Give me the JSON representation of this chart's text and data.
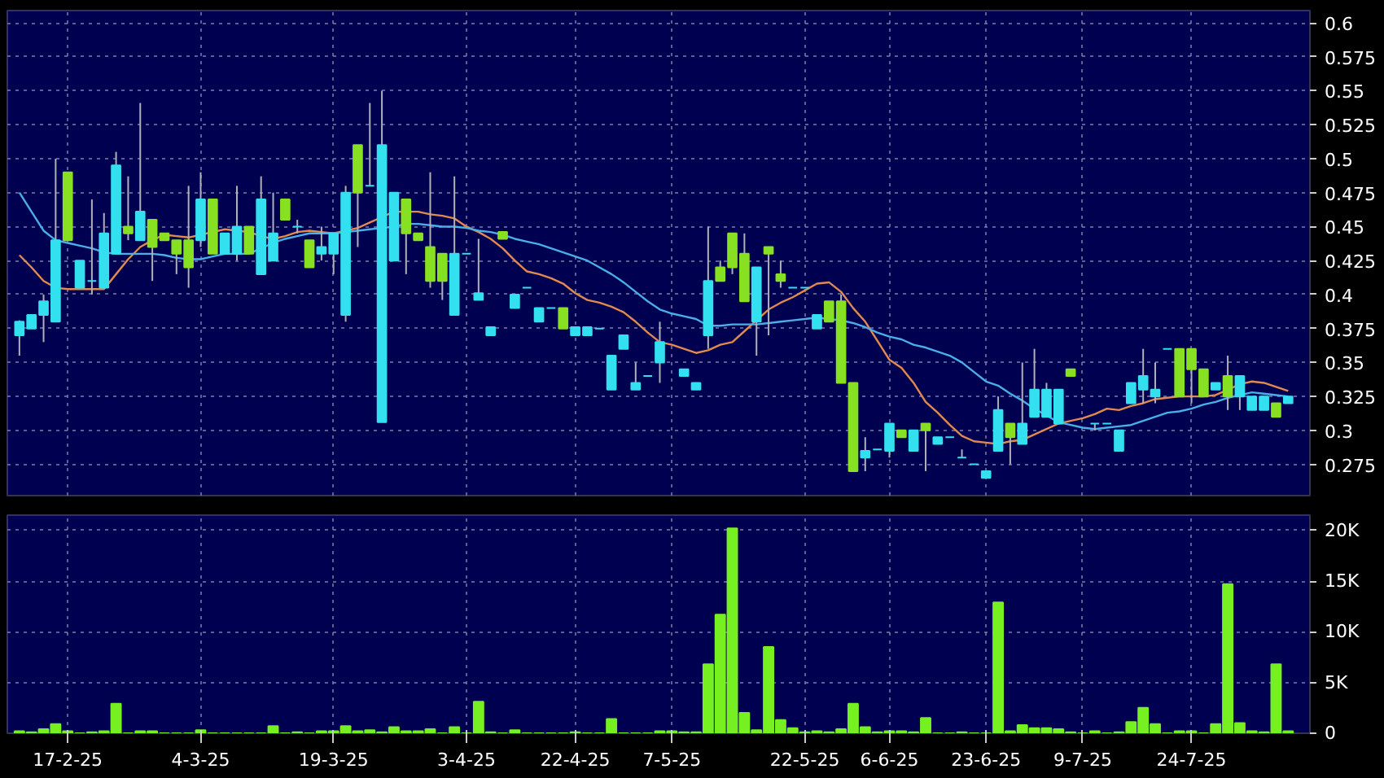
{
  "chart_data": [
    {
      "type": "candlestick",
      "categories": [
        null,
        null,
        null,
        null,
        null,
        null,
        null,
        null,
        null,
        null,
        null,
        null,
        null,
        null,
        null,
        null,
        null,
        null,
        null,
        null,
        null,
        null,
        null,
        null,
        null,
        null,
        null,
        null,
        null,
        null,
        null,
        null,
        null,
        null,
        null,
        null,
        null,
        null,
        null,
        null,
        null,
        null,
        null,
        null,
        null,
        null,
        null,
        null,
        null,
        null,
        null,
        null,
        null,
        null,
        null,
        null,
        null,
        null,
        null,
        null,
        null,
        null,
        null,
        null,
        null,
        null,
        null,
        null,
        null,
        null,
        null,
        null,
        null,
        null,
        null,
        null,
        null,
        null,
        null,
        null,
        null,
        null,
        null,
        null,
        null,
        null,
        null,
        null,
        null,
        null,
        null,
        null,
        null,
        null,
        null,
        null,
        null,
        null,
        null,
        null,
        null,
        null,
        null,
        null,
        null,
        null
      ],
      "ohlc": [
        [
          0.37,
          0.381,
          0.355,
          0.38
        ],
        [
          0.375,
          0.385,
          0.375,
          0.385
        ],
        [
          0.385,
          0.4,
          0.365,
          0.395
        ],
        [
          0.38,
          0.5,
          0.38,
          0.44
        ],
        [
          0.49,
          0.49,
          0.44,
          0.44
        ],
        [
          0.405,
          0.425,
          0.405,
          0.425
        ],
        [
          0.41,
          0.47,
          0.4,
          0.41
        ],
        [
          0.405,
          0.46,
          0.405,
          0.445
        ],
        [
          0.43,
          0.505,
          0.43,
          0.495
        ],
        [
          0.45,
          0.487,
          0.44,
          0.445
        ],
        [
          0.44,
          0.541,
          0.44,
          0.461
        ],
        [
          0.455,
          0.455,
          0.41,
          0.435
        ],
        [
          0.445,
          0.445,
          0.44,
          0.44
        ],
        [
          0.44,
          0.44,
          0.415,
          0.43
        ],
        [
          0.44,
          0.48,
          0.405,
          0.42
        ],
        [
          0.44,
          0.49,
          0.435,
          0.47
        ],
        [
          0.47,
          0.47,
          0.43,
          0.43
        ],
        [
          0.43,
          0.445,
          0.43,
          0.445
        ],
        [
          0.43,
          0.48,
          0.425,
          0.45
        ],
        [
          0.45,
          0.45,
          0.43,
          0.43
        ],
        [
          0.415,
          0.487,
          0.415,
          0.47
        ],
        [
          0.425,
          0.475,
          0.425,
          0.445
        ],
        [
          0.47,
          0.47,
          0.455,
          0.455
        ],
        [
          0.45,
          0.455,
          0.445,
          0.45
        ],
        [
          0.44,
          0.44,
          0.42,
          0.42
        ],
        [
          0.43,
          0.45,
          0.425,
          0.435
        ],
        [
          0.43,
          0.445,
          0.415,
          0.445
        ],
        [
          0.385,
          0.48,
          0.38,
          0.475
        ],
        [
          0.51,
          0.51,
          0.435,
          0.475
        ],
        [
          0.48,
          0.541,
          0.48,
          0.48
        ],
        [
          0.306,
          0.55,
          0.306,
          0.51
        ],
        [
          0.425,
          0.475,
          0.425,
          0.475
        ],
        [
          0.47,
          0.47,
          0.415,
          0.445
        ],
        [
          0.445,
          0.445,
          0.44,
          0.44
        ],
        [
          0.435,
          0.49,
          0.405,
          0.41
        ],
        [
          0.43,
          0.43,
          0.396,
          0.41
        ],
        [
          0.385,
          0.487,
          0.385,
          0.43
        ],
        [
          0.43,
          0.43,
          0.43,
          0.43
        ],
        [
          0.396,
          0.441,
          0.396,
          0.401
        ],
        [
          0.37,
          0.376,
          0.37,
          0.376
        ],
        [
          0.446,
          0.446,
          0.441,
          0.441
        ],
        [
          0.39,
          0.4,
          0.39,
          0.4
        ],
        [
          0.405,
          0.405,
          0.405,
          0.405
        ],
        [
          0.38,
          0.39,
          0.38,
          0.39
        ],
        [
          0.39,
          0.39,
          0.39,
          0.39
        ],
        [
          0.39,
          0.39,
          0.375,
          0.375
        ],
        [
          0.37,
          0.376,
          0.37,
          0.376
        ],
        [
          0.37,
          0.376,
          0.37,
          0.376
        ],
        [
          0.375,
          0.375,
          0.375,
          0.375
        ],
        [
          0.33,
          0.355,
          0.33,
          0.355
        ],
        [
          0.36,
          0.37,
          0.36,
          0.37
        ],
        [
          0.33,
          0.35,
          0.33,
          0.335
        ],
        [
          0.34,
          0.34,
          0.34,
          0.34
        ],
        [
          0.35,
          0.38,
          0.335,
          0.365
        ],
        null,
        [
          0.34,
          0.345,
          0.34,
          0.345
        ],
        [
          0.33,
          0.335,
          0.33,
          0.335
        ],
        [
          0.37,
          0.45,
          0.36,
          0.41
        ],
        [
          0.42,
          0.425,
          0.41,
          0.41
        ],
        [
          0.445,
          0.445,
          0.415,
          0.42
        ],
        [
          0.43,
          0.445,
          0.395,
          0.395
        ],
        [
          0.38,
          0.42,
          0.355,
          0.42
        ],
        [
          0.435,
          0.435,
          0.37,
          0.43
        ],
        [
          0.415,
          0.425,
          0.405,
          0.41
        ],
        [
          0.405,
          0.405,
          0.405,
          0.405
        ],
        [
          0.405,
          0.405,
          0.405,
          0.405
        ],
        [
          0.375,
          0.385,
          0.375,
          0.385
        ],
        [
          0.395,
          0.395,
          0.38,
          0.38
        ],
        [
          0.395,
          0.4,
          0.335,
          0.335
        ],
        [
          0.335,
          0.335,
          0.27,
          0.27
        ],
        [
          0.28,
          0.295,
          0.27,
          0.285
        ],
        [
          0.286,
          0.286,
          0.286,
          0.286
        ],
        [
          0.285,
          0.305,
          0.28,
          0.305
        ],
        [
          0.3,
          0.3,
          0.295,
          0.295
        ],
        [
          0.285,
          0.3,
          0.285,
          0.3
        ],
        [
          0.305,
          0.305,
          0.27,
          0.3
        ],
        [
          0.29,
          0.295,
          0.29,
          0.295
        ],
        [
          0.295,
          0.295,
          0.295,
          0.295
        ],
        [
          0.28,
          0.286,
          0.28,
          0.28
        ],
        [
          0.275,
          0.275,
          0.275,
          0.275
        ],
        [
          0.265,
          0.27,
          0.265,
          0.27
        ],
        [
          0.285,
          0.325,
          0.285,
          0.315
        ],
        [
          0.305,
          0.305,
          0.275,
          0.295
        ],
        [
          0.29,
          0.35,
          0.29,
          0.305
        ],
        [
          0.31,
          0.36,
          0.31,
          0.33
        ],
        [
          0.31,
          0.335,
          0.31,
          0.33
        ],
        [
          0.305,
          0.33,
          0.305,
          0.33
        ],
        [
          0.345,
          0.345,
          0.34,
          0.34
        ],
        null,
        [
          0.305,
          0.305,
          0.3,
          0.305
        ],
        [
          0.305,
          0.305,
          0.305,
          0.305
        ],
        [
          0.285,
          0.3,
          0.285,
          0.3
        ],
        [
          0.32,
          0.335,
          0.32,
          0.335
        ],
        [
          0.33,
          0.36,
          0.32,
          0.34
        ],
        [
          0.325,
          0.35,
          0.32,
          0.33
        ],
        [
          0.36,
          0.36,
          0.36,
          0.36
        ],
        [
          0.36,
          0.36,
          0.325,
          0.325
        ],
        [
          0.36,
          0.36,
          0.32,
          0.345
        ],
        [
          0.345,
          0.345,
          0.325,
          0.325
        ],
        [
          0.33,
          0.335,
          0.33,
          0.335
        ],
        [
          0.34,
          0.355,
          0.315,
          0.325
        ],
        [
          0.325,
          0.34,
          0.315,
          0.34
        ],
        [
          0.315,
          0.325,
          0.315,
          0.325
        ],
        [
          0.315,
          0.325,
          0.315,
          0.325
        ],
        [
          0.32,
          0.32,
          0.31,
          0.31
        ],
        [
          0.32,
          0.325,
          0.32,
          0.325
        ]
      ],
      "colors": [
        "#33e0f0",
        "#33e0f0",
        "#33e0f0",
        "#33e0f0",
        "#88e022",
        "#33e0f0",
        "#33e0f0",
        "#33e0f0",
        "#33e0f0",
        "#88e022",
        "#33e0f0",
        "#88e022",
        "#88e022",
        "#88e022",
        "#88e022",
        "#33e0f0",
        "#88e022",
        "#33e0f0",
        "#33e0f0",
        "#88e022",
        "#33e0f0",
        "#33e0f0",
        "#88e022",
        "#33e0f0",
        "#88e022",
        "#33e0f0",
        "#33e0f0",
        "#33e0f0",
        "#88e022",
        "#33e0f0",
        "#33e0f0",
        "#33e0f0",
        "#88e022",
        "#88e022",
        "#88e022",
        "#88e022",
        "#33e0f0",
        "#33e0f0",
        "#33e0f0",
        "#33e0f0",
        "#88e022",
        "#33e0f0",
        "#33e0f0",
        "#33e0f0",
        "#33e0f0",
        "#88e022",
        "#33e0f0",
        "#33e0f0",
        "#33e0f0",
        "#33e0f0",
        "#33e0f0",
        "#33e0f0",
        "#33e0f0",
        "#33e0f0",
        null,
        "#33e0f0",
        "#33e0f0",
        "#33e0f0",
        "#88e022",
        "#88e022",
        "#88e022",
        "#33e0f0",
        "#88e022",
        "#88e022",
        "#33e0f0",
        "#33e0f0",
        "#33e0f0",
        "#88e022",
        "#88e022",
        "#88e022",
        "#33e0f0",
        "#33e0f0",
        "#33e0f0",
        "#88e022",
        "#33e0f0",
        "#88e022",
        "#33e0f0",
        "#33e0f0",
        "#33e0f0",
        "#33e0f0",
        "#33e0f0",
        "#33e0f0",
        "#88e022",
        "#33e0f0",
        "#33e0f0",
        "#33e0f0",
        "#33e0f0",
        "#88e022",
        null,
        "#33e0f0",
        "#33e0f0",
        "#33e0f0",
        "#33e0f0",
        "#33e0f0",
        "#33e0f0",
        "#33e0f0",
        "#88e022",
        "#88e022",
        "#88e022",
        "#33e0f0",
        "#88e022",
        "#33e0f0",
        "#33e0f0",
        "#33e0f0",
        "#88e022",
        "#33e0f0"
      ],
      "series": [
        {
          "type": "line",
          "color": "#e08a50",
          "values": [
            0.429,
            0.42,
            0.41,
            0.405,
            0.404,
            0.404,
            0.404,
            0.404,
            0.415,
            0.426,
            0.435,
            0.44,
            0.444,
            0.443,
            0.442,
            0.444,
            0.446,
            0.448,
            0.447,
            0.446,
            0.443,
            0.441,
            0.443,
            0.446,
            0.447,
            0.446,
            0.445,
            0.447,
            0.449,
            0.453,
            0.457,
            0.461,
            0.461,
            0.461,
            0.459,
            0.458,
            0.456,
            0.45,
            0.446,
            0.441,
            0.434,
            0.425,
            0.417,
            0.415,
            0.412,
            0.408,
            0.401,
            0.396,
            0.394,
            0.391,
            0.387,
            0.38,
            0.372,
            0.365,
            0.363,
            0.36,
            0.357,
            0.359,
            0.363,
            0.365,
            0.373,
            0.381,
            0.389,
            0.394,
            0.398,
            0.403,
            0.408,
            0.409,
            0.402,
            0.39,
            0.38,
            0.366,
            0.352,
            0.346,
            0.335,
            0.321,
            0.313,
            0.304,
            0.296,
            0.292,
            0.291,
            0.29,
            0.292,
            0.293,
            0.297,
            0.301,
            0.305,
            0.307,
            0.309,
            0.312,
            0.316,
            0.315,
            0.318,
            0.32,
            0.323,
            0.324,
            0.325,
            0.325,
            0.325,
            0.326,
            0.33,
            0.334,
            0.336,
            0.335,
            0.332,
            0.329
          ]
        },
        {
          "type": "line",
          "color": "#4aaee8",
          "values": [
            0.475,
            0.461,
            0.447,
            0.44,
            0.438,
            0.436,
            0.434,
            0.431,
            0.43,
            0.43,
            0.43,
            0.43,
            0.429,
            0.427,
            0.426,
            0.426,
            0.428,
            0.43,
            0.43,
            0.43,
            0.434,
            0.438,
            0.441,
            0.443,
            0.445,
            0.445,
            0.445,
            0.446,
            0.447,
            0.448,
            0.449,
            0.45,
            0.452,
            0.452,
            0.451,
            0.45,
            0.45,
            0.449,
            0.447,
            0.446,
            0.444,
            0.441,
            0.439,
            0.437,
            0.434,
            0.431,
            0.428,
            0.425,
            0.42,
            0.415,
            0.409,
            0.402,
            0.395,
            0.389,
            0.386,
            0.384,
            0.382,
            0.377,
            0.377,
            0.378,
            0.378,
            0.378,
            0.379,
            0.38,
            0.381,
            0.382,
            0.383,
            0.382,
            0.381,
            0.379,
            0.376,
            0.372,
            0.369,
            0.367,
            0.363,
            0.361,
            0.358,
            0.355,
            0.35,
            0.343,
            0.336,
            0.333,
            0.327,
            0.322,
            0.316,
            0.311,
            0.306,
            0.304,
            0.302,
            0.301,
            0.302,
            0.303,
            0.304,
            0.307,
            0.31,
            0.313,
            0.314,
            0.316,
            0.319,
            0.321,
            0.324,
            0.326,
            0.328,
            0.327,
            0.326,
            0.325
          ]
        }
      ],
      "ylim": [
        0.252,
        0.609
      ],
      "yticks": [
        0.275,
        0.3,
        0.325,
        0.35,
        0.375,
        0.4,
        0.425,
        0.45,
        0.475,
        0.5,
        0.525,
        0.55,
        0.575,
        0.6
      ],
      "grid": true,
      "tick_labels": "y"
    },
    {
      "type": "bar",
      "categories": [
        null,
        null,
        null,
        null,
        "17-2-25",
        null,
        null,
        null,
        null,
        null,
        null,
        null,
        null,
        null,
        null,
        "4-3-25",
        null,
        null,
        null,
        null,
        null,
        null,
        null,
        null,
        null,
        null,
        "19-3-25",
        null,
        null,
        null,
        null,
        null,
        null,
        null,
        null,
        null,
        null,
        "3-4-25",
        null,
        null,
        null,
        null,
        null,
        null,
        null,
        null,
        "22-4-25",
        null,
        null,
        null,
        null,
        null,
        null,
        null,
        "7-5-25",
        null,
        null,
        null,
        null,
        null,
        null,
        null,
        null,
        null,
        null,
        "22-5-25",
        null,
        null,
        null,
        null,
        null,
        null,
        "6-6-25",
        null,
        null,
        null,
        null,
        null,
        null,
        null,
        "23-6-25",
        null,
        null,
        null,
        null,
        null,
        null,
        null,
        "9-7-25",
        null,
        null,
        null,
        null,
        null,
        null,
        null,
        null,
        "24-7-25",
        null,
        null,
        null,
        null,
        null,
        null,
        null,
        null
      ],
      "values": [
        0.2,
        0.1,
        0.4,
        0.9,
        0.2,
        0,
        0.1,
        0.2,
        2.9,
        0,
        0.2,
        0.2,
        0,
        0,
        0,
        0.3,
        0,
        0,
        0,
        0,
        0,
        0.7,
        0,
        0.1,
        0,
        0.2,
        0.2,
        0.7,
        0.2,
        0.3,
        0.1,
        0.6,
        0.2,
        0.2,
        0.4,
        0,
        0.6,
        0,
        3.1,
        0.1,
        0,
        0.3,
        0,
        0,
        0,
        0,
        0.1,
        0,
        0,
        1.4,
        0,
        0,
        0,
        0.2,
        0.2,
        0.1,
        0.1,
        6.8,
        11.7,
        20.2,
        2.0,
        0.3,
        8.5,
        1.3,
        0.5,
        0.1,
        0.2,
        0.1,
        0.4,
        2.9,
        0.6,
        0.1,
        0.2,
        0.2,
        0.1,
        1.5,
        0,
        0,
        0.1,
        0,
        0,
        12.9,
        0.2,
        0.8,
        0.5,
        0.5,
        0.4,
        0.1,
        0,
        0.2,
        0,
        0.1,
        1.1,
        2.5,
        0.9,
        0,
        0.2,
        0.2,
        0,
        0.9,
        14.7,
        1.0,
        0.2,
        0.1,
        6.8,
        0.2
      ],
      "color": "#77f022",
      "ylim": [
        0,
        21.5
      ],
      "yticks": [
        0,
        {
          "value": 5,
          "label": "5K"
        },
        {
          "value": 10,
          "label": "10K"
        },
        {
          "value": 15,
          "label": "15K"
        },
        {
          "value": 20,
          "label": "20K"
        }
      ],
      "grid": true
    }
  ]
}
